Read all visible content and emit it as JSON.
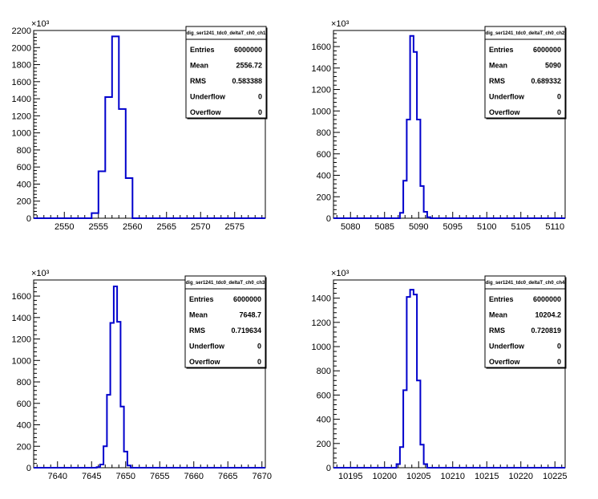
{
  "colors": {
    "histogram": "#0000cc",
    "axis": "#000000",
    "background": "#ffffff"
  },
  "chart_data": [
    {
      "type": "bar",
      "histogram_style": "step",
      "title": "dig_ser1241_tdc0_deltaT_ch0_ch1",
      "x": [
        2554.5,
        2555.5,
        2556.5,
        2557.5,
        2558.5,
        2559.5
      ],
      "values": [
        60,
        550,
        1420,
        2130,
        1280,
        470
      ],
      "xlim": [
        2545.5,
        2579.5
      ],
      "ylim": [
        0,
        2200
      ],
      "xticks": [
        2550,
        2555,
        2560,
        2565,
        2570,
        2575
      ],
      "yticks": [
        0,
        200,
        400,
        600,
        800,
        1000,
        1200,
        1400,
        1600,
        1800,
        2000,
        2200
      ],
      "y_exponent": "×10³",
      "stats": {
        "entries_label": "Entries",
        "entries": "6000000",
        "mean_label": "Mean",
        "mean": "2556.72",
        "rms_label": "RMS",
        "rms": "0.583388",
        "underflow_label": "Underflow",
        "underflow": "0",
        "overflow_label": "Overflow",
        "overflow": "0"
      }
    },
    {
      "type": "bar",
      "histogram_style": "step",
      "title": "dig_ser1241_tdc0_deltaT_ch0_ch2",
      "x": [
        5087.5,
        5088.0,
        5088.5,
        5089.0,
        5089.5,
        5090.0,
        5090.5,
        5091.0,
        5091.5
      ],
      "values": [
        50,
        350,
        920,
        1700,
        1550,
        920,
        300,
        60,
        10
      ],
      "xlim": [
        5077.5,
        5111.5
      ],
      "ylim": [
        0,
        1750
      ],
      "xticks": [
        5080,
        5085,
        5090,
        5095,
        5100,
        5105,
        5110
      ],
      "yticks": [
        0,
        200,
        400,
        600,
        800,
        1000,
        1200,
        1400,
        1600
      ],
      "y_exponent": "×10³",
      "stats": {
        "entries_label": "Entries",
        "entries": "6000000",
        "mean_label": "Mean",
        "mean": "5090",
        "rms_label": "RMS",
        "rms": "0.689332",
        "underflow_label": "Underflow",
        "underflow": "0",
        "overflow_label": "Overflow",
        "overflow": "0"
      }
    },
    {
      "type": "bar",
      "histogram_style": "step",
      "title": "dig_ser1241_tdc0_deltaT_ch0_ch3",
      "x": [
        7646.0,
        7646.5,
        7647.0,
        7647.5,
        7648.0,
        7648.5,
        7649.0,
        7649.5,
        7650.0,
        7650.5
      ],
      "values": [
        5,
        30,
        200,
        680,
        1350,
        1690,
        1360,
        570,
        150,
        20
      ],
      "xlim": [
        7636.5,
        7670.5
      ],
      "ylim": [
        0,
        1750
      ],
      "xticks": [
        7640,
        7645,
        7650,
        7655,
        7660,
        7665,
        7670
      ],
      "yticks": [
        0,
        200,
        400,
        600,
        800,
        1000,
        1200,
        1400,
        1600
      ],
      "y_exponent": "×10³",
      "stats": {
        "entries_label": "Entries",
        "entries": "6000000",
        "mean_label": "Mean",
        "mean": "7648.7",
        "rms_label": "RMS",
        "rms": "0.719634",
        "underflow_label": "Underflow",
        "underflow": "0",
        "overflow_label": "Overflow",
        "overflow": "0"
      }
    },
    {
      "type": "bar",
      "histogram_style": "step",
      "title": "dig_ser1241_tdc0_deltaT_ch0_ch4",
      "x": [
        10202.0,
        10202.5,
        10203.0,
        10203.5,
        10204.0,
        10204.5,
        10205.0,
        10205.5,
        10206.0
      ],
      "values": [
        30,
        170,
        640,
        1410,
        1470,
        1430,
        720,
        190,
        30
      ],
      "xlim": [
        10192.5,
        10226.5
      ],
      "ylim": [
        0,
        1550
      ],
      "xticks": [
        10195,
        10200,
        10205,
        10210,
        10215,
        10220,
        10225
      ],
      "yticks": [
        0,
        200,
        400,
        600,
        800,
        1000,
        1200,
        1400
      ],
      "y_exponent": "×10³",
      "stats": {
        "entries_label": "Entries",
        "entries": "6000000",
        "mean_label": "Mean",
        "mean": "10204.2",
        "rms_label": "RMS",
        "rms": "0.720819",
        "underflow_label": "Underflow",
        "underflow": "0",
        "overflow_label": "Overflow",
        "overflow": "0"
      }
    }
  ]
}
